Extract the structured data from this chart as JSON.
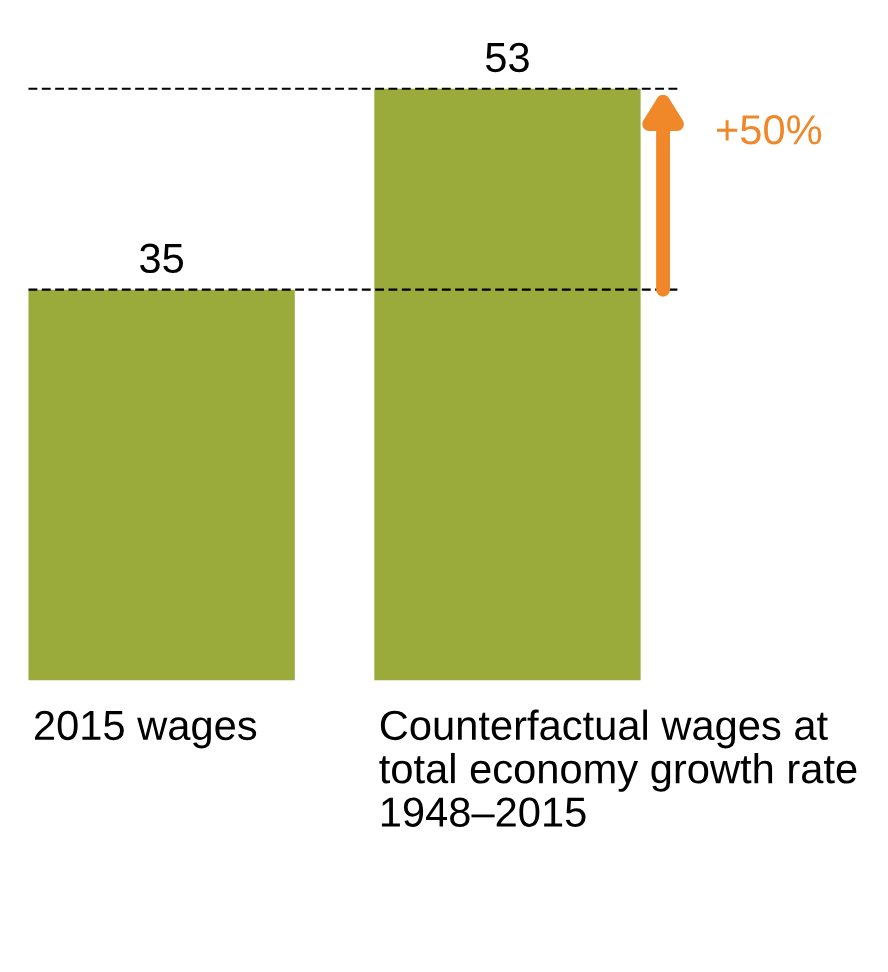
{
  "chart_data": {
    "type": "bar",
    "categories": [
      "2015 wages",
      "Counterfactual wages at total economy growth rate 1948–2015"
    ],
    "values": [
      35,
      53
    ],
    "color": "#9aab3b",
    "data_labels": true,
    "ref_lines": [
      {
        "axis": "y",
        "value": 35,
        "color": "#000000",
        "line_style": "dashed"
      },
      {
        "axis": "y",
        "value": 53,
        "color": "#000000",
        "line_style": "dashed"
      }
    ],
    "annotations": [
      "+50%"
    ]
  }
}
